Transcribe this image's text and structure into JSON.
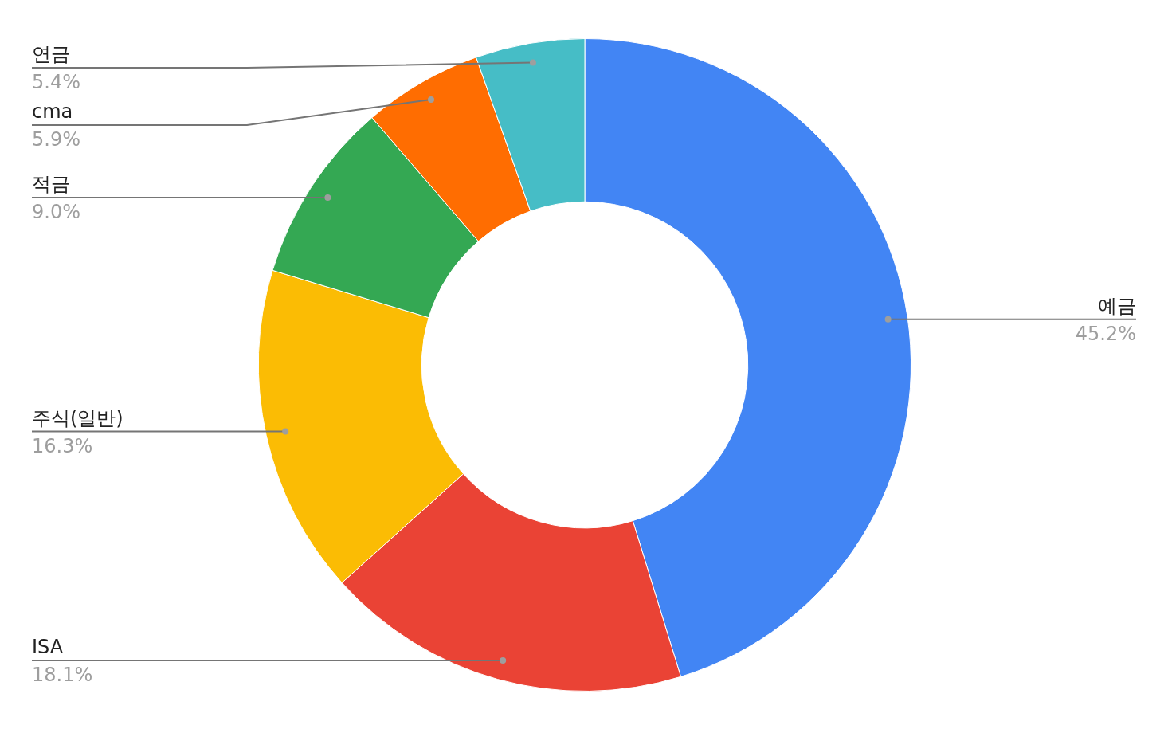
{
  "chart_data": {
    "type": "donut",
    "categories": [
      "예금",
      "ISA",
      "주식(일반)",
      "적금",
      "cma",
      "연금"
    ],
    "values": [
      45.2,
      18.1,
      16.3,
      9.0,
      5.9,
      5.4
    ],
    "value_labels": [
      "45.2%",
      "18.1%",
      "16.3%",
      "9.0%",
      "5.9%",
      "5.4%"
    ],
    "colors": [
      "#4285f4",
      "#ea4335",
      "#fbbc04",
      "#34a853",
      "#ff6d01",
      "#46bdc6"
    ],
    "legend": false
  }
}
